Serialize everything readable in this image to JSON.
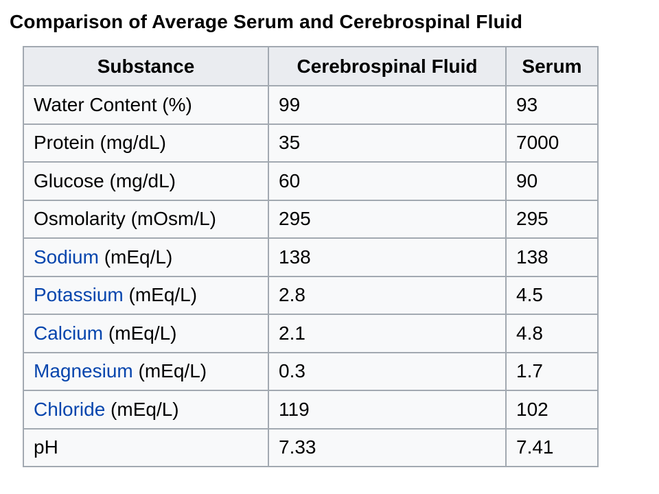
{
  "title": "Comparison of Average Serum and Cerebrospinal  Fluid",
  "colors": {
    "link": "#0645ad",
    "header_bg": "#eaecf0",
    "cell_bg": "#f8f9fa",
    "border": "#a2a9b1"
  },
  "headers": [
    "Substance",
    "Cerebrospinal Fluid",
    "Serum"
  ],
  "rows": [
    {
      "name": "Water Content",
      "unit": " (%)",
      "link": false,
      "csf": "99",
      "serum": "93"
    },
    {
      "name": "Protein",
      "unit": " (mg/dL)",
      "link": false,
      "csf": "35",
      "serum": "7000"
    },
    {
      "name": "Glucose",
      "unit": " (mg/dL)",
      "link": false,
      "csf": "60",
      "serum": "90"
    },
    {
      "name": "Osmolarity",
      "unit": " (mOsm/L)",
      "link": false,
      "csf": "295",
      "serum": "295"
    },
    {
      "name": "Sodium",
      "unit": " (mEq/L)",
      "link": true,
      "csf": "138",
      "serum": "138"
    },
    {
      "name": "Potassium",
      "unit": " (mEq/L)",
      "link": true,
      "csf": "2.8",
      "serum": "4.5"
    },
    {
      "name": "Calcium",
      "unit": " (mEq/L)",
      "link": true,
      "csf": "2.1",
      "serum": "4.8"
    },
    {
      "name": "Magnesium",
      "unit": " (mEq/L)",
      "link": true,
      "csf": "0.3",
      "serum": "1.7"
    },
    {
      "name": "Chloride",
      "unit": " (mEq/L)",
      "link": true,
      "csf": "119",
      "serum": "102"
    },
    {
      "name": "pH",
      "unit": "",
      "link": false,
      "csf": "7.33",
      "serum": "7.41"
    }
  ]
}
